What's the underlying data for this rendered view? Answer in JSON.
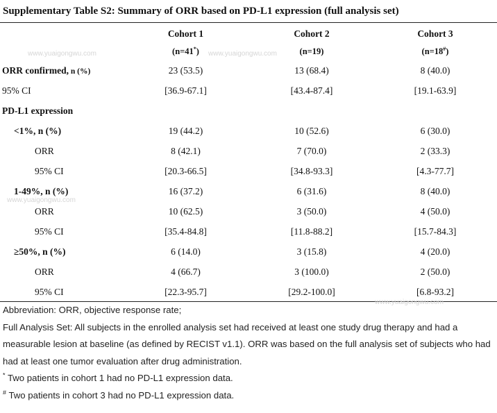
{
  "title": "Supplementary Table S2: Summary of ORR based on PD-L1 expression (full analysis set)",
  "columns": [
    {
      "name": "Cohort 1",
      "n_prefix": "(n=41",
      "n_mark": "*",
      "n_suffix": ")"
    },
    {
      "name": "Cohort 2",
      "n_prefix": "(n=19",
      "n_mark": "",
      "n_suffix": ")"
    },
    {
      "name": "Cohort 3",
      "n_prefix": "(n=18",
      "n_mark": "#",
      "n_suffix": ")"
    }
  ],
  "rows": [
    {
      "label": "ORR confirmed,",
      "label_suffix": " n (%)",
      "values": [
        "23 (53.5)",
        "13 (68.4)",
        "8 (40.0)"
      ]
    },
    {
      "label": "95% CI",
      "values": [
        "[36.9-67.1]",
        "[43.4-87.4]",
        "[19.1-63.9]"
      ]
    },
    {
      "label": "PD-L1 expression",
      "values": [
        "",
        "",
        ""
      ]
    },
    {
      "label": "<1%, n (%)",
      "values": [
        "19 (44.2)",
        "10 (52.6)",
        "6 (30.0)"
      ]
    },
    {
      "label": "ORR",
      "values": [
        "8 (42.1)",
        "7 (70.0)",
        "2 (33.3)"
      ]
    },
    {
      "label": "95% CI",
      "values": [
        "[20.3-66.5]",
        "[34.8-93.3]",
        "[4.3-77.7]"
      ]
    },
    {
      "label": "1-49%, n (%)",
      "values": [
        "16 (37.2)",
        "6 (31.6)",
        "8 (40.0)"
      ]
    },
    {
      "label": "ORR",
      "values": [
        "10 (62.5)",
        "3 (50.0)",
        "4 (50.0)"
      ]
    },
    {
      "label": "95% CI",
      "values": [
        "[35.4-84.8]",
        "[11.8-88.2]",
        "[15.7-84.3]"
      ]
    },
    {
      "label": "≥50%, n (%)",
      "values": [
        "6 (14.0)",
        "3 (15.8)",
        "4 (20.0)"
      ]
    },
    {
      "label": "ORR",
      "values": [
        "4 (66.7)",
        "3 (100.0)",
        "2 (50.0)"
      ]
    },
    {
      "label": "95% CI",
      "values": [
        "[22.3-95.7]",
        "[29.2-100.0]",
        "[6.8-93.2]"
      ]
    }
  ],
  "notes": {
    "abbreviation": "Abbreviation: ORR, objective response rate;",
    "full_analysis": "Full Analysis Set: All subjects in the enrolled analysis set had received at least one study drug therapy and had a measurable lesion at baseline (as defined by RECIST v1.1). ORR was based on the full analysis set of subjects who had had at least one tumor evaluation after drug administration.",
    "fn1_mark": "*",
    "fn1_text": " Two patients in cohort 1 had no PD-L1 expression data.",
    "fn2_mark": "#",
    "fn2_text": " Two patients in cohort 3 had no PD-L1 expression data."
  },
  "watermark": "www.yuaigongwu.com"
}
